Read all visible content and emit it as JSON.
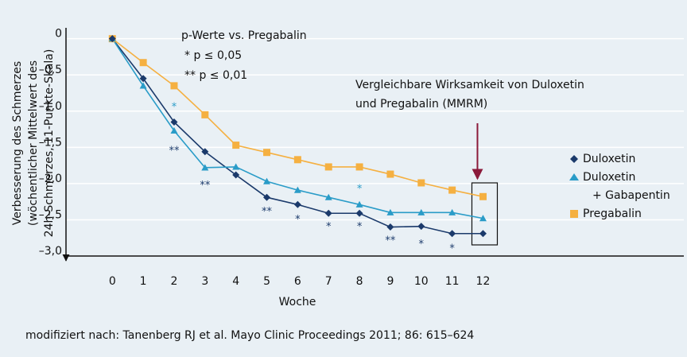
{
  "chart_data": {
    "type": "line",
    "x_label": "Woche",
    "y_label": [
      "Verbesserung des Schmerzes",
      "(wöchentlicher Mittelwert des",
      "24h-Schmerzes, 11-Punkte-Skala)"
    ],
    "x": [
      0,
      1,
      2,
      3,
      4,
      5,
      6,
      7,
      8,
      9,
      10,
      11,
      12
    ],
    "series": [
      {
        "name": "Duloxetin",
        "color": "#1b3a6b",
        "marker": "diamond",
        "values": [
          0,
          -0.55,
          -1.15,
          -1.56,
          -1.88,
          -2.19,
          -2.29,
          -2.41,
          -2.41,
          -2.6,
          -2.59,
          -2.69,
          -2.69
        ]
      },
      {
        "name": "Duloxetin\n+ Gabapentin",
        "color": "#2a9cc8",
        "marker": "triangle",
        "values": [
          0,
          -0.65,
          -1.27,
          -1.78,
          -1.77,
          -1.97,
          -2.09,
          -2.19,
          -2.29,
          -2.4,
          -2.4,
          -2.4,
          -2.48
        ]
      },
      {
        "name": "Pregabalin",
        "color": "#f5b041",
        "marker": "square",
        "values": [
          0,
          -0.33,
          -0.65,
          -1.05,
          -1.47,
          -1.57,
          -1.67,
          -1.77,
          -1.77,
          -1.87,
          -1.99,
          -2.09,
          -2.18
        ]
      }
    ],
    "xlim": [
      -1.5,
      18.5
    ],
    "xticks": [
      0,
      1,
      2,
      3,
      4,
      5,
      6,
      7,
      8,
      9,
      10,
      11,
      12
    ],
    "ylim": [
      -3,
      0.15
    ],
    "yticks": [
      {
        "value": 0,
        "label": "0"
      },
      {
        "value": -0.5,
        "label": "–0,5"
      },
      {
        "value": -1,
        "label": "–1,0"
      },
      {
        "value": -1.5,
        "label": "–1,5"
      },
      {
        "value": -2,
        "label": "–2,0"
      },
      {
        "value": -2.5,
        "label": "–2,5"
      },
      {
        "value": -3,
        "label": "–3,0"
      }
    ],
    "grid": true,
    "significance_marks": [
      {
        "text": "*",
        "x": 2,
        "y": -0.95,
        "color": "#2a9cc8"
      },
      {
        "text": "**",
        "x": 2,
        "y": -1.55,
        "color": "#1b3a6b"
      },
      {
        "text": "**",
        "x": 3,
        "y": -2.03,
        "color": "#1b3a6b"
      },
      {
        "text": "**",
        "x": 5,
        "y": -2.39,
        "color": "#1b3a6b"
      },
      {
        "text": "*",
        "x": 6,
        "y": -2.5,
        "color": "#1b3a6b"
      },
      {
        "text": "*",
        "x": 7,
        "y": -2.6,
        "color": "#1b3a6b"
      },
      {
        "text": "*",
        "x": 8,
        "y": -2.08,
        "color": "#2a9cc8"
      },
      {
        "text": "*",
        "x": 8,
        "y": -2.6,
        "color": "#1b3a6b"
      },
      {
        "text": "**",
        "x": 9,
        "y": -2.79,
        "color": "#1b3a6b"
      },
      {
        "text": "*",
        "x": 10,
        "y": -2.84,
        "color": "#1b3a6b"
      },
      {
        "text": "*",
        "x": 11,
        "y": -2.9,
        "color": "#1b3a6b"
      }
    ],
    "p_legend": [
      "p-Werte vs. Pregabalin",
      "* p ≤ 0,05",
      "** p ≤ 0,01"
    ],
    "annotation": [
      "Vergleichbare Wirksamkeit von Duloxetin",
      "und Pregabalin (MMRM)"
    ],
    "source": "modifiziert nach: Tanenberg RJ et al. Mayo Clinic Proceedings 2011; 86: 615–624"
  }
}
